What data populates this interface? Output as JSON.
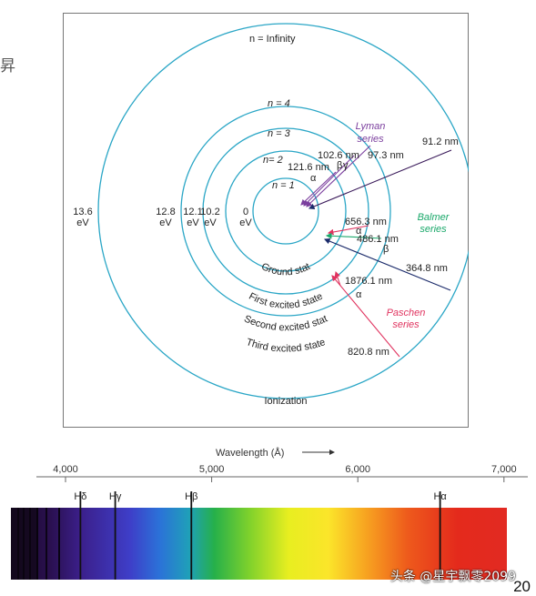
{
  "atom": {
    "levels": [
      {
        "n_label": "n = 1",
        "energy": "0",
        "unit": "eV",
        "state": "Ground stat"
      },
      {
        "n_label": "n= 2",
        "energy": "10.2",
        "unit": "eV",
        "state": "First excited state"
      },
      {
        "n_label": "n = 3",
        "energy": "12.1",
        "unit": "eV",
        "state": "Second excited stat"
      },
      {
        "n_label": "n = 4",
        "energy": "12.8",
        "unit": "eV",
        "state": "Third excited state"
      },
      {
        "n_label": "n = Infinity",
        "energy": "13.6",
        "unit": "eV",
        "state": "Ionization"
      }
    ],
    "series": [
      {
        "name_line1": "Lyman",
        "name_line2": "series",
        "color": "#7b3f9e",
        "transitions": [
          {
            "wavelength": "121.6 nm",
            "greek": "α"
          },
          {
            "wavelength": "102.6 nm",
            "greek": "β"
          },
          {
            "wavelength": "97.3 nm",
            "greek": "γ"
          },
          {
            "wavelength": "91.2 nm",
            "greek": ""
          }
        ]
      },
      {
        "name_line1": "Balmer",
        "name_line2": "series",
        "color": "#1aa86a",
        "transitions": [
          {
            "wavelength": "656.3 nm",
            "greek": "α"
          },
          {
            "wavelength": "486.1 nm",
            "greek": "β"
          },
          {
            "wavelength": "364.8 nm",
            "greek": ""
          }
        ]
      },
      {
        "name_line1": "Paschen",
        "name_line2": "series",
        "color": "#e0335f",
        "transitions": [
          {
            "wavelength": "1876.1 nm",
            "greek": "α"
          },
          {
            "wavelength": "820.8 nm",
            "greek": ""
          }
        ]
      }
    ],
    "colors": {
      "orbit": "#2aa6c6",
      "lyman": "#7b3f9e",
      "balmer": "#1aa86a",
      "paschen": "#e0335f",
      "arrow_dark": "#1a2a6a"
    }
  },
  "spectrum": {
    "axis_title": "Wavelength (Å)",
    "ticks": [
      "4,000",
      "5,000",
      "6,000",
      "7,000"
    ],
    "tick_values": [
      4000,
      5000,
      6000,
      7000
    ],
    "lines": [
      {
        "label": "Hδ",
        "wavelength": 4102
      },
      {
        "label": "Hγ",
        "wavelength": 4340
      },
      {
        "label": "Hβ",
        "wavelength": 4861
      },
      {
        "label": "Hα",
        "wavelength": 6563
      }
    ]
  },
  "side_mark": "昇",
  "watermark": "头条 @星宇飘零2099",
  "page_number": "20"
}
